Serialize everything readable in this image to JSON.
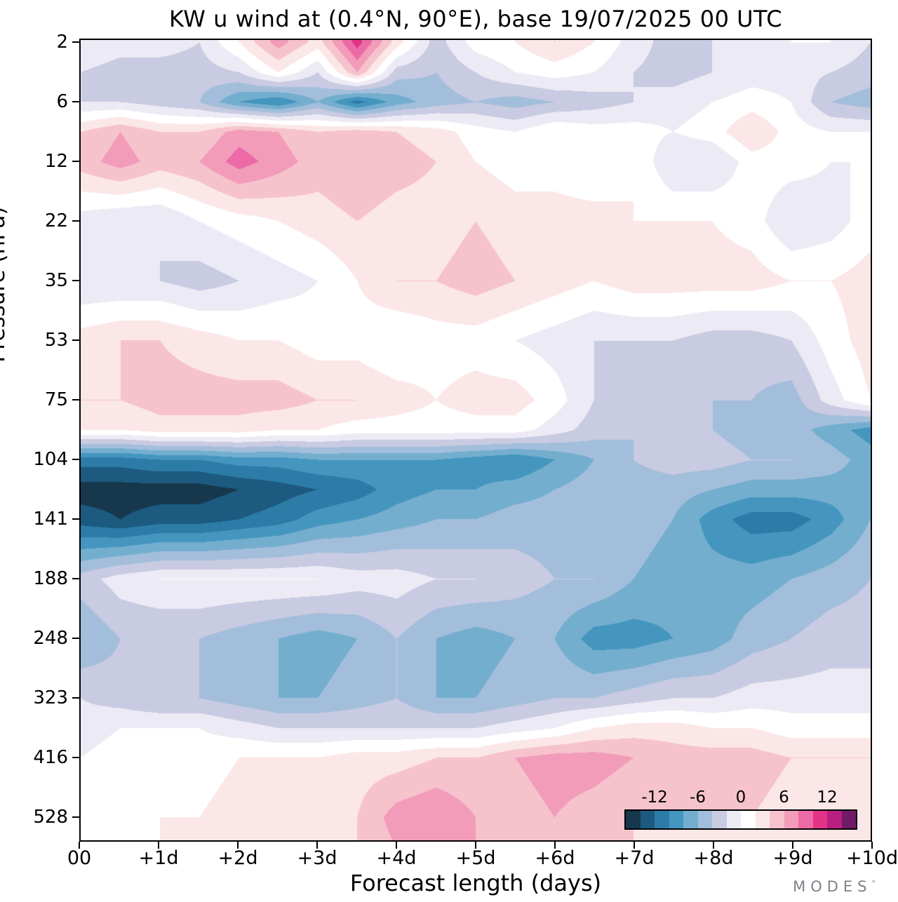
{
  "title": "KW u wind at (0.4°N, 90°E),  base 19/07/2025  00 UTC",
  "x_axis": {
    "label": "Forecast length (days)",
    "ticks": [
      "00",
      "+1d",
      "+2d",
      "+3d",
      "+4d",
      "+5d",
      "+6d",
      "+7d",
      "+8d",
      "+9d",
      "+10d"
    ]
  },
  "y_axis": {
    "label": "Pressure (hPa)",
    "ticks": [
      "2",
      "6",
      "12",
      "22",
      "35",
      "53",
      "75",
      "104",
      "141",
      "188",
      "248",
      "323",
      "416",
      "528"
    ]
  },
  "branding": {
    "text": "MODES",
    "mark": "°"
  },
  "colorbar": {
    "tick_labels": [
      "-12",
      "-6",
      "0",
      "6",
      "12"
    ],
    "tick_values": [
      -12,
      -6,
      0,
      6,
      12
    ],
    "vmin": -16,
    "vmax": 16,
    "step": 2,
    "palette": [
      "#16374c",
      "#1c5a80",
      "#2c7ca7",
      "#4596bf",
      "#74aecf",
      "#a3bedb",
      "#c8cbe1",
      "#eceaf4",
      "#ffffff",
      "#fbe7e8",
      "#f6c3cd",
      "#f29cba",
      "#ec6ba6",
      "#e33388",
      "#b81f7e",
      "#721a68"
    ]
  },
  "chart_data": {
    "type": "heatmap",
    "title": "KW u wind at (0.4°N, 90°E),  base 19/07/2025  00 UTC",
    "xlabel": "Forecast length (days)",
    "ylabel": "Pressure (hPa)",
    "x_range_days": [
      0,
      10
    ],
    "y_tick_pressures_hPa": [
      2,
      6,
      12,
      22,
      35,
      53,
      75,
      104,
      141,
      188,
      248,
      323,
      416,
      528
    ],
    "value_levels": {
      "min": -16,
      "max": 16,
      "step": 2
    },
    "x_days": [
      0,
      0.5,
      1,
      1.5,
      2,
      2.5,
      3,
      3.5,
      4,
      4.5,
      5,
      5.5,
      6,
      6.5,
      7,
      7.5,
      8,
      8.5,
      9,
      9.5,
      10
    ],
    "row_pos": [
      0,
      0.5,
      1,
      1.5,
      2,
      3,
      4,
      5,
      6,
      6.5,
      7,
      7.5,
      8,
      9,
      10,
      11,
      11.5,
      12,
      13,
      13.5
    ],
    "row_pressure_hPa": [
      2,
      3.5,
      6,
      9,
      12,
      22,
      35,
      53,
      75,
      88,
      104,
      120,
      141,
      188,
      248,
      323,
      368,
      416,
      528,
      560
    ],
    "values": [
      [
        0,
        -1,
        -1,
        -2,
        2,
        7,
        3,
        11,
        3,
        -3,
        1,
        2,
        4,
        2,
        -1,
        -3,
        -2,
        -1,
        0,
        0,
        -2
      ],
      [
        -2,
        -3,
        -3,
        -3,
        -2,
        2,
        -2,
        6,
        -3,
        -4,
        -2,
        0,
        1,
        0,
        -2,
        -3,
        -2,
        -1,
        -1,
        -2,
        -3
      ],
      [
        -2,
        -2,
        -3,
        -4,
        -8,
        -10,
        -6,
        -11,
        -7,
        -5,
        -4,
        -5,
        -4,
        -3,
        -2,
        -1,
        0,
        1,
        0,
        -4,
        -5
      ],
      [
        4,
        6,
        4,
        4,
        7,
        6,
        4,
        5,
        4,
        3,
        1,
        0,
        2,
        1,
        1,
        0,
        1,
        4,
        1,
        0,
        0
      ],
      [
        5,
        7,
        5,
        6,
        9,
        7,
        5,
        6,
        5,
        4,
        2,
        1,
        1,
        0,
        2,
        -2,
        -2,
        1,
        1,
        0,
        0
      ],
      [
        -1,
        -2,
        -2,
        0,
        1,
        2,
        3,
        4,
        3,
        3,
        4,
        3,
        3,
        3,
        2,
        2,
        2,
        1,
        -2,
        -1,
        1
      ],
      [
        -2,
        -2,
        -2,
        -3,
        -2,
        -1,
        0,
        2,
        4,
        4,
        5,
        4,
        3,
        2,
        3,
        3,
        3,
        3,
        2,
        2,
        3
      ],
      [
        3,
        4,
        4,
        3,
        2,
        2,
        1,
        1,
        0,
        1,
        1,
        0,
        -1,
        -2,
        -2,
        -2,
        -3,
        -3,
        -2,
        1,
        3
      ],
      [
        4,
        4,
        5,
        5,
        5,
        5,
        4,
        4,
        3,
        2,
        3,
        3,
        1,
        -2,
        -3,
        -4,
        -4,
        -4,
        -5,
        -1,
        2
      ],
      [
        2,
        2,
        3,
        3,
        3,
        2,
        2,
        1,
        1,
        1,
        1,
        1,
        -1,
        -3,
        -4,
        -4,
        -4,
        -5,
        -5,
        -7,
        -9
      ],
      [
        -11,
        -11,
        -10,
        -10,
        -9,
        -9,
        -8,
        -8,
        -8,
        -8,
        -9,
        -10,
        -8,
        -6,
        -4,
        -3,
        -3,
        -4,
        -4,
        -5,
        -7
      ],
      [
        -15,
        -15,
        -15,
        -15,
        -14,
        -13,
        -12,
        -11,
        -9,
        -8,
        -8,
        -7,
        -6,
        -5,
        -5,
        -5,
        -6,
        -7,
        -7,
        -7,
        -7
      ],
      [
        -13,
        -14,
        -13,
        -13,
        -12,
        -11,
        -9,
        -8,
        -7,
        -6,
        -6,
        -5,
        -5,
        -4,
        -5,
        -6,
        -9,
        -11,
        -11,
        -9,
        -6
      ],
      [
        -3,
        -1,
        0,
        0,
        0,
        0,
        0,
        -1,
        -1,
        -2,
        -2,
        -3,
        -4,
        -4,
        -6,
        -7,
        -7,
        -7,
        -6,
        -5,
        -4
      ],
      [
        -6,
        -4,
        -4,
        -4,
        -5,
        -6,
        -7,
        -6,
        -4,
        -6,
        -7,
        -6,
        -6,
        -9,
        -9,
        -8,
        -7,
        -5,
        -4,
        -3,
        -3
      ],
      [
        -2,
        -3,
        -4,
        -4,
        -5,
        -6,
        -6,
        -5,
        -4,
        -6,
        -6,
        -5,
        -4,
        -4,
        -3,
        -2,
        -2,
        -1,
        -1,
        -1,
        -1
      ],
      [
        -1,
        0,
        0,
        0,
        -1,
        -2,
        -2,
        -2,
        -2,
        -2,
        -2,
        -1,
        0,
        2,
        3,
        3,
        2,
        2,
        1,
        1,
        1
      ],
      [
        0,
        1,
        1,
        1,
        2,
        2,
        2,
        3,
        3,
        4,
        4,
        6,
        7,
        7,
        6,
        5,
        5,
        5,
        4,
        4,
        4
      ],
      [
        1,
        1,
        2,
        2,
        3,
        3,
        3,
        4,
        7,
        8,
        6,
        5,
        6,
        5,
        4,
        4,
        4,
        4,
        3,
        3,
        3
      ],
      [
        1,
        1,
        2,
        2,
        2,
        3,
        3,
        4,
        6,
        7,
        6,
        5,
        5,
        4,
        4,
        3,
        3,
        3,
        3,
        2,
        2
      ]
    ]
  }
}
